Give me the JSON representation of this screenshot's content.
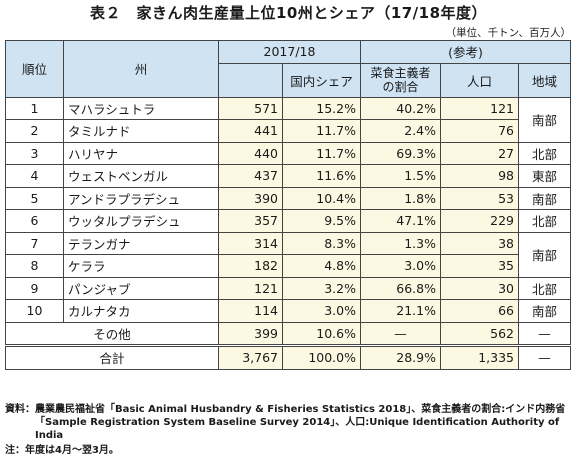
{
  "title": "表２　家きん肉生産量上位10州とシェア（17/18年度）",
  "unit": "（単位、千トン、百万人）",
  "headers": {
    "rank": "順位",
    "state": "州",
    "year": "2017/18",
    "reference": "(参考)",
    "share": "国内シェア",
    "veg_ratio": "菜食主義者の割合",
    "population": "人口",
    "region": "地域"
  },
  "rows": [
    {
      "rank": "1",
      "state": "マハラシュトラ",
      "production": "571",
      "share": "15.2%",
      "veg": "40.2%",
      "pop": "121"
    },
    {
      "rank": "2",
      "state": "タミルナド",
      "production": "441",
      "share": "11.7%",
      "veg": "2.4%",
      "pop": "76"
    },
    {
      "rank": "3",
      "state": "ハリヤナ",
      "production": "440",
      "share": "11.7%",
      "veg": "69.3%",
      "pop": "27"
    },
    {
      "rank": "4",
      "state": "ウェストベンガル",
      "production": "437",
      "share": "11.6%",
      "veg": "1.5%",
      "pop": "98"
    },
    {
      "rank": "5",
      "state": "アンドラプラデシュ",
      "production": "390",
      "share": "10.4%",
      "veg": "1.8%",
      "pop": "53"
    },
    {
      "rank": "6",
      "state": "ウッタルプラデシュ",
      "production": "357",
      "share": "9.5%",
      "veg": "47.1%",
      "pop": "229"
    },
    {
      "rank": "7",
      "state": "テランガナ",
      "production": "314",
      "share": "8.3%",
      "veg": "1.3%",
      "pop": "38"
    },
    {
      "rank": "8",
      "state": "ケララ",
      "production": "182",
      "share": "4.8%",
      "veg": "3.0%",
      "pop": "35"
    },
    {
      "rank": "9",
      "state": "パンジャブ",
      "production": "121",
      "share": "3.2%",
      "veg": "66.8%",
      "pop": "30"
    },
    {
      "rank": "10",
      "state": "カルナタカ",
      "production": "114",
      "share": "3.0%",
      "veg": "21.1%",
      "pop": "66"
    }
  ],
  "regions": [
    "南部",
    "北部",
    "東部",
    "南部",
    "北部",
    "南部",
    "北部",
    "南部"
  ],
  "other": {
    "label": "その他",
    "production": "399",
    "share": "10.6%",
    "veg": "—",
    "pop": "562",
    "region": "—"
  },
  "total": {
    "label": "合計",
    "production": "3,767",
    "share": "100.0%",
    "veg": "28.9%",
    "pop": "1,335",
    "region": "—"
  },
  "notes": {
    "source_label": "資料：",
    "source_text": "農業農民福祉省「Basic Animal Husbandry & Fisheries Statistics 2018」、菜食主義者の割合:インド内務省「Sample Registration System Baseline Survey 2014」、人口:Unique Identification Authority of India",
    "note_label": "注：",
    "note_text": "年度は4月〜翌3月。"
  }
}
